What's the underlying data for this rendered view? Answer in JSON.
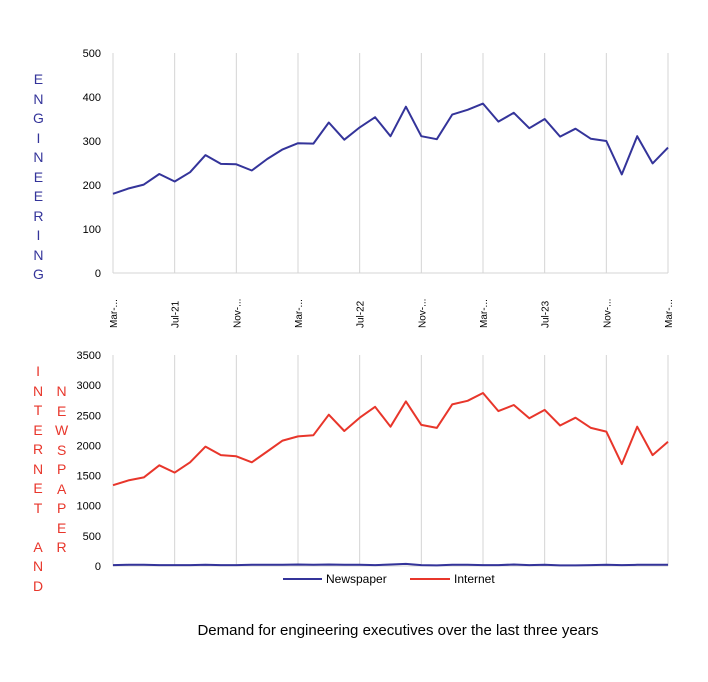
{
  "side_labels": {
    "top": "ENGINEERING",
    "bottom_left": "INTERNET AND",
    "bottom_right": "NEWSPAPER"
  },
  "title": "Demand for engineering executives over the last three years",
  "colors": {
    "engineering": "#34349a",
    "newspaper": "#34349a",
    "internet": "#e8362b"
  },
  "chart_data": [
    {
      "type": "line",
      "title": "",
      "ylabel": "ENGINEERING",
      "ylim": [
        0,
        500
      ],
      "yticks": [
        "0",
        "100",
        "200",
        "300",
        "400",
        "500"
      ],
      "xtick_labels": [
        "Mar-...",
        "Jul-21",
        "Nov-...",
        "Mar-...",
        "Jul-22",
        "Nov-...",
        "Mar-...",
        "Jul-23",
        "Nov-...",
        "Mar-..."
      ],
      "grid": "vertical",
      "series": [
        {
          "name": "Engineering",
          "values": [
            180,
            192,
            201,
            225,
            208,
            229,
            268,
            248,
            247,
            233,
            259,
            281,
            295,
            294,
            342,
            303,
            331,
            354,
            311,
            378,
            311,
            304,
            360,
            371,
            385,
            344,
            364,
            329,
            350,
            310,
            328,
            305,
            300,
            224,
            311,
            249,
            285
          ]
        }
      ]
    },
    {
      "type": "line",
      "title": "",
      "ylabel": "INTERNET AND NEWSPAPER",
      "ylim": [
        0,
        3500
      ],
      "yticks": [
        "0",
        "500",
        "1000",
        "1500",
        "2000",
        "2500",
        "3000",
        "3500"
      ],
      "legend": "bottom",
      "grid": "vertical",
      "series": [
        {
          "name": "Newspaper",
          "values": [
            15,
            20,
            20,
            15,
            15,
            15,
            20,
            15,
            15,
            20,
            20,
            20,
            25,
            20,
            25,
            20,
            20,
            15,
            25,
            35,
            15,
            10,
            20,
            20,
            15,
            15,
            25,
            15,
            20,
            10,
            10,
            15,
            20,
            15,
            20,
            20,
            20
          ]
        },
        {
          "name": "Internet",
          "values": [
            1340,
            1420,
            1470,
            1670,
            1550,
            1720,
            1980,
            1840,
            1820,
            1720,
            1900,
            2080,
            2150,
            2170,
            2510,
            2240,
            2460,
            2640,
            2310,
            2730,
            2340,
            2290,
            2680,
            2740,
            2870,
            2570,
            2670,
            2450,
            2590,
            2330,
            2460,
            2290,
            2230,
            1690,
            2310,
            1840,
            2060
          ]
        }
      ]
    }
  ]
}
